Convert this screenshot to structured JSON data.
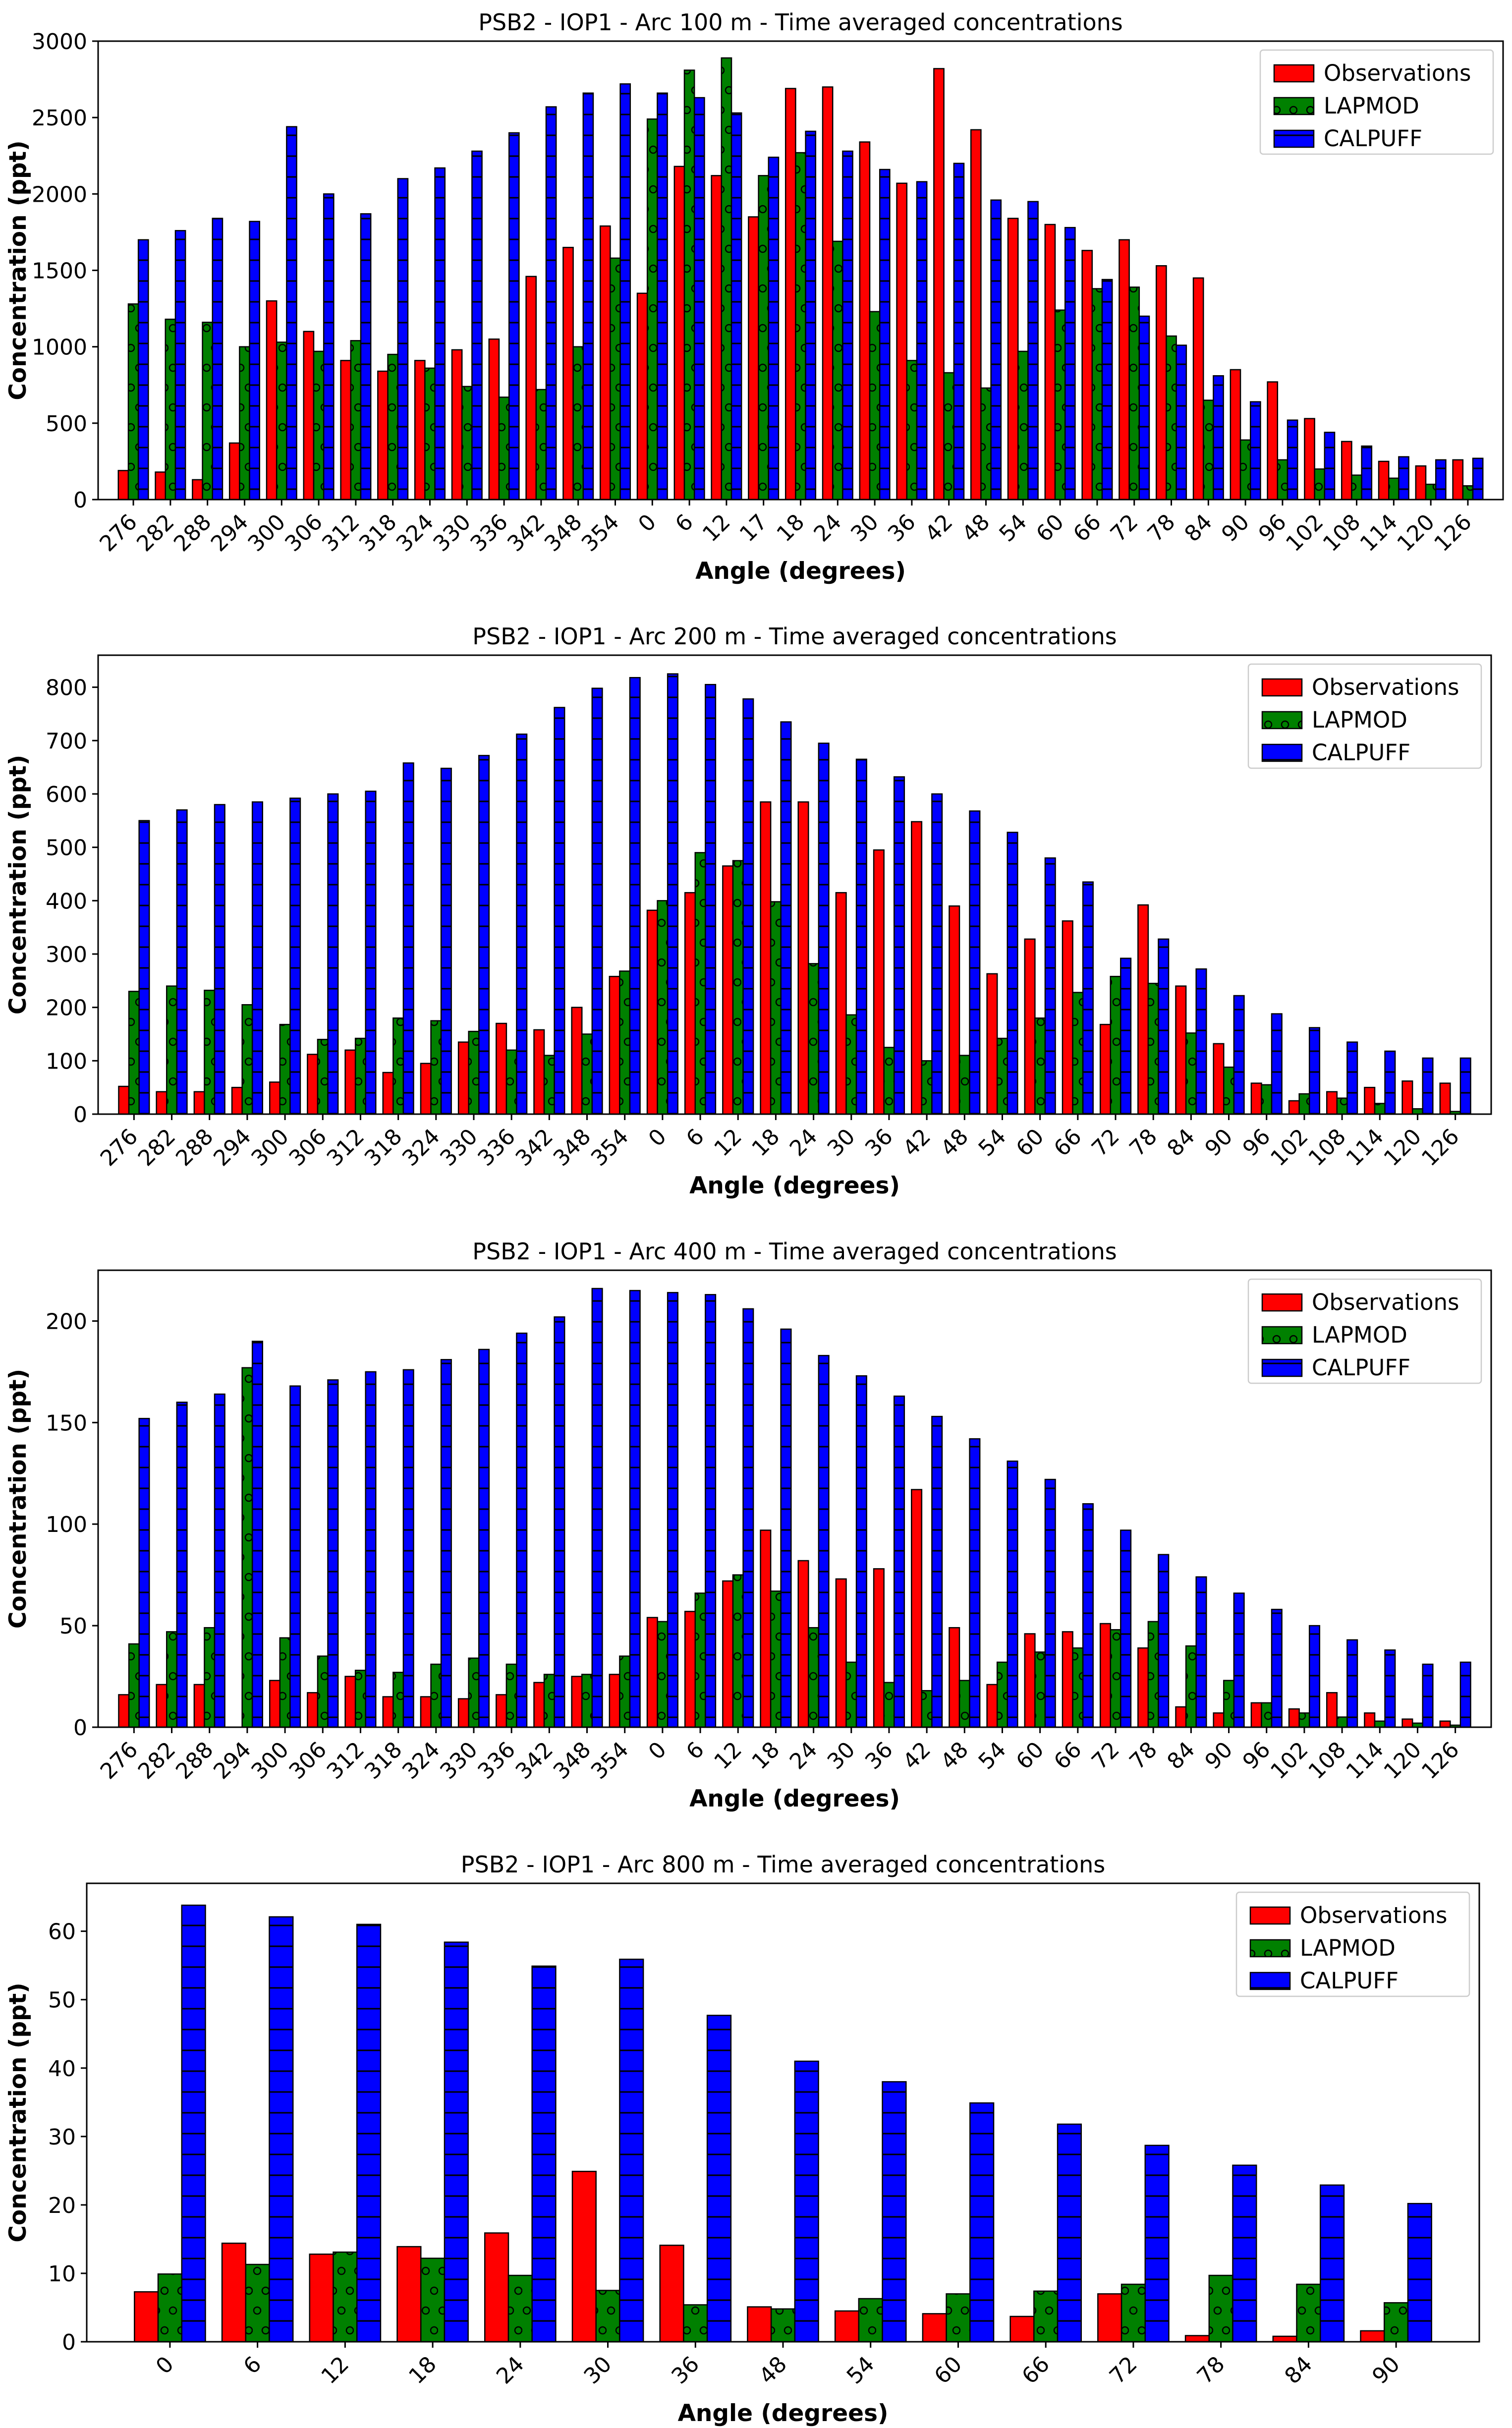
{
  "colors": {
    "observations": "#ff0000",
    "lapmod": "#008000",
    "calpuff": "#0000ff"
  },
  "chart_data": [
    {
      "type": "bar",
      "title": "PSB2 - IOP1 - Arc 100 m - Time averaged concentrations",
      "xlabel": "Angle (degrees)",
      "ylabel": "Concentration (ppt)",
      "ylim": [
        0,
        3000
      ],
      "yticks": [
        0,
        500,
        1000,
        1500,
        2000,
        2500,
        3000
      ],
      "legend_loc": "top-right",
      "categories": [
        "276",
        "282",
        "288",
        "294",
        "300",
        "306",
        "312",
        "318",
        "324",
        "330",
        "336",
        "342",
        "348",
        "354",
        "0",
        "6",
        "12",
        "17",
        "18",
        "24",
        "30",
        "36",
        "42",
        "48",
        "54",
        "60",
        "66",
        "72",
        "78",
        "84",
        "90",
        "96",
        "102",
        "108",
        "114",
        "120",
        "126"
      ],
      "series": [
        {
          "name": "Observations",
          "values": [
            190,
            180,
            130,
            370,
            1300,
            1100,
            910,
            840,
            910,
            980,
            1050,
            1460,
            1650,
            1790,
            1350,
            2180,
            2120,
            1850,
            2690,
            2700,
            2340,
            2070,
            2820,
            2420,
            1840,
            1800,
            1630,
            1700,
            1530,
            1450,
            850,
            770,
            530,
            380,
            250,
            220,
            260
          ]
        },
        {
          "name": "LAPMOD",
          "values": [
            1280,
            1180,
            1160,
            1000,
            1030,
            970,
            1040,
            950,
            860,
            740,
            670,
            720,
            1000,
            1580,
            2490,
            2810,
            2890,
            2120,
            2270,
            1690,
            1230,
            910,
            830,
            730,
            970,
            1240,
            1380,
            1390,
            1070,
            650,
            390,
            260,
            200,
            160,
            140,
            100,
            90
          ]
        },
        {
          "name": "CALPUFF",
          "values": [
            1700,
            1760,
            1840,
            1820,
            2440,
            2000,
            1870,
            2100,
            2170,
            2280,
            2400,
            2570,
            2660,
            2720,
            2660,
            2630,
            2530,
            2240,
            2410,
            2280,
            2160,
            2080,
            2200,
            1960,
            1950,
            1780,
            1440,
            1200,
            1010,
            810,
            640,
            520,
            440,
            350,
            280,
            260,
            270
          ]
        }
      ]
    },
    {
      "type": "bar",
      "title": "PSB2 - IOP1 - Arc 200 m - Time averaged concentrations",
      "xlabel": "Angle (degrees)",
      "ylabel": "Concentration (ppt)",
      "ylim": [
        0,
        860
      ],
      "yticks": [
        0,
        100,
        200,
        300,
        400,
        500,
        600,
        700,
        800
      ],
      "legend_loc": "top-right",
      "categories": [
        "276",
        "282",
        "288",
        "294",
        "300",
        "306",
        "312",
        "318",
        "324",
        "330",
        "336",
        "342",
        "348",
        "354",
        "0",
        "6",
        "12",
        "18",
        "24",
        "30",
        "36",
        "42",
        "48",
        "54",
        "60",
        "66",
        "72",
        "78",
        "84",
        "90",
        "96",
        "102",
        "108",
        "114",
        "120",
        "126"
      ],
      "series": [
        {
          "name": "Observations",
          "values": [
            52,
            42,
            42,
            50,
            60,
            112,
            120,
            78,
            95,
            135,
            170,
            158,
            200,
            258,
            382,
            415,
            465,
            585,
            585,
            415,
            495,
            548,
            390,
            263,
            328,
            362,
            168,
            392,
            240,
            132,
            58,
            25,
            42,
            50,
            62,
            58
          ]
        },
        {
          "name": "LAPMOD",
          "values": [
            230,
            240,
            232,
            205,
            168,
            140,
            142,
            180,
            175,
            155,
            120,
            110,
            150,
            268,
            400,
            490,
            475,
            398,
            282,
            186,
            125,
            100,
            110,
            142,
            180,
            228,
            258,
            245,
            152,
            88,
            55,
            38,
            30,
            20,
            10,
            5
          ]
        },
        {
          "name": "CALPUFF",
          "values": [
            550,
            570,
            580,
            585,
            592,
            600,
            605,
            658,
            648,
            672,
            712,
            762,
            798,
            818,
            825,
            805,
            778,
            735,
            695,
            665,
            632,
            600,
            568,
            528,
            480,
            435,
            292,
            328,
            272,
            222,
            188,
            162,
            135,
            118,
            105,
            105
          ]
        }
      ]
    },
    {
      "type": "bar",
      "title": "PSB2 - IOP1 - Arc 400 m - Time averaged concentrations",
      "xlabel": "Angle (degrees)",
      "ylabel": "Concentration (ppt)",
      "ylim": [
        0,
        225
      ],
      "yticks": [
        0,
        50,
        100,
        150,
        200
      ],
      "legend_loc": "top-right",
      "categories": [
        "276",
        "282",
        "288",
        "294",
        "300",
        "306",
        "312",
        "318",
        "324",
        "330",
        "336",
        "342",
        "348",
        "354",
        "0",
        "6",
        "12",
        "18",
        "24",
        "30",
        "36",
        "42",
        "48",
        "54",
        "60",
        "66",
        "72",
        "78",
        "84",
        "90",
        "96",
        "102",
        "108",
        "114",
        "120",
        "126"
      ],
      "series": [
        {
          "name": "Observations",
          "values": [
            16,
            21,
            21,
            0,
            23,
            17,
            25,
            15,
            15,
            14,
            16,
            22,
            25,
            26,
            54,
            57,
            72,
            97,
            82,
            73,
            78,
            117,
            49,
            21,
            46,
            47,
            51,
            39,
            10,
            7,
            12,
            9,
            17,
            7,
            4,
            3
          ]
        },
        {
          "name": "LAPMOD",
          "values": [
            41,
            47,
            49,
            177,
            44,
            35,
            28,
            27,
            31,
            34,
            31,
            26,
            26,
            35,
            52,
            66,
            75,
            67,
            49,
            32,
            22,
            18,
            23,
            32,
            37,
            39,
            48,
            52,
            40,
            23,
            12,
            7,
            5,
            3,
            2,
            1
          ]
        },
        {
          "name": "CALPUFF",
          "values": [
            152,
            160,
            164,
            190,
            168,
            171,
            175,
            176,
            181,
            186,
            194,
            202,
            216,
            215,
            214,
            213,
            206,
            196,
            183,
            173,
            163,
            153,
            142,
            131,
            122,
            110,
            97,
            85,
            74,
            66,
            58,
            50,
            43,
            38,
            31,
            32
          ]
        }
      ]
    },
    {
      "type": "bar",
      "title": "PSB2 - IOP1 - Arc 800 m - Time averaged concentrations",
      "xlabel": "Angle (degrees)",
      "ylabel": "Concentration (ppt)",
      "ylim": [
        0,
        67
      ],
      "yticks": [
        0,
        10,
        20,
        30,
        40,
        50,
        60
      ],
      "legend_loc": "top-right",
      "categories": [
        "0",
        "6",
        "12",
        "18",
        "24",
        "30",
        "36",
        "48",
        "54",
        "60",
        "66",
        "72",
        "78",
        "84",
        "90"
      ],
      "series": [
        {
          "name": "Observations",
          "values": [
            7.3,
            14.4,
            12.8,
            13.9,
            15.9,
            24.9,
            14.1,
            5.1,
            4.5,
            4.1,
            3.7,
            7.0,
            0.9,
            0.8,
            1.6
          ]
        },
        {
          "name": "LAPMOD",
          "values": [
            9.9,
            11.3,
            13.1,
            12.2,
            9.7,
            7.5,
            5.4,
            4.8,
            6.3,
            7.0,
            7.4,
            8.4,
            9.7,
            8.4,
            5.7
          ]
        },
        {
          "name": "CALPUFF",
          "values": [
            63.8,
            62.1,
            61.0,
            58.4,
            54.9,
            55.9,
            47.7,
            41.0,
            38.0,
            34.9,
            31.8,
            28.7,
            25.8,
            22.9,
            20.2
          ]
        }
      ]
    }
  ]
}
